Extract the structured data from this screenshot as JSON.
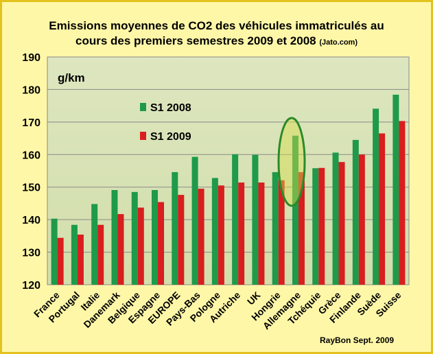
{
  "chart_data": {
    "type": "bar",
    "title_line1": "Emissions moyennes de CO2 des véhicules immatriculés au",
    "title_line2": "cours des  premiers semestres 2009 et 2008",
    "title_source": "(Jato.com)",
    "ylabel": "g/km",
    "ylim": [
      120,
      190
    ],
    "yticks": [
      "120",
      "130",
      "140",
      "150",
      "160",
      "170",
      "180",
      "190"
    ],
    "grid": true,
    "legend_position": "upper-left",
    "categories": [
      "France",
      "Portugal",
      "Italie",
      "Danemark",
      "Belgique",
      "Espagne",
      "EUROPE",
      "Pays-Bas",
      "Pologne",
      "Autriche",
      "UK",
      "Hongrie",
      "Allemagne",
      "Tchéquie",
      "Grèce",
      "Finlande",
      "Suède",
      "Suisse"
    ],
    "series": [
      {
        "name": "S1 2008",
        "color": "#1e9a4a",
        "values": [
          140.3,
          138.4,
          144.8,
          149.1,
          148.5,
          149.1,
          154.6,
          159.3,
          152.8,
          160.1,
          159.9,
          154.6,
          165.8,
          155.8,
          160.6,
          164.5,
          174.1,
          178.4
        ]
      },
      {
        "name": "S1 2009",
        "color": "#d81e1e",
        "values": [
          134.4,
          135.4,
          138.4,
          141.7,
          143.7,
          145.4,
          147.6,
          149.5,
          150.5,
          151.4,
          151.4,
          152.1,
          154.6,
          155.9,
          157.7,
          160.0,
          166.5,
          170.3
        ]
      }
    ],
    "highlight_category": "Allemagne"
  },
  "credit": "RayBon Sept. 2009"
}
